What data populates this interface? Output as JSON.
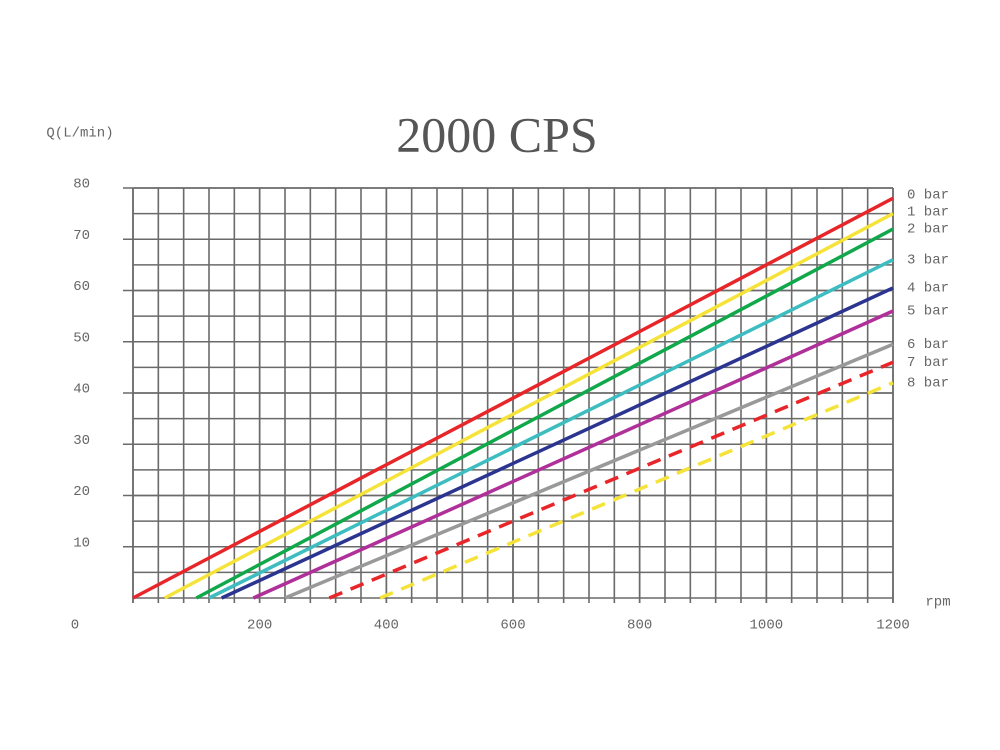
{
  "chart_data": {
    "type": "line",
    "title": "2000 CPS",
    "y_label": "Q(L/min)",
    "x_label": "rpm",
    "xlim": [
      0,
      1200
    ],
    "ylim": [
      0,
      80
    ],
    "xticks": [
      0,
      200,
      400,
      600,
      800,
      1000,
      1200
    ],
    "yticks": [
      10,
      20,
      30,
      40,
      50,
      60,
      70,
      80
    ],
    "grid": true,
    "x_grid_step": 40,
    "y_grid_step": 5,
    "series": [
      {
        "name": "0 bar",
        "color": "#e8262a",
        "dashed": false,
        "x": [
          0,
          1200
        ],
        "values": [
          0,
          78
        ]
      },
      {
        "name": "1 bar",
        "color": "#f5e33a",
        "dashed": false,
        "x": [
          50,
          1200
        ],
        "values": [
          0,
          75
        ]
      },
      {
        "name": "2 bar",
        "color": "#10a84a",
        "dashed": false,
        "x": [
          100,
          1200
        ],
        "values": [
          0,
          72
        ]
      },
      {
        "name": "3 bar",
        "color": "#3dbdc0",
        "dashed": false,
        "x": [
          120,
          1200
        ],
        "values": [
          0,
          66
        ]
      },
      {
        "name": "4 bar",
        "color": "#2b3590",
        "dashed": false,
        "x": [
          140,
          1200
        ],
        "values": [
          0,
          60.5
        ]
      },
      {
        "name": "5 bar",
        "color": "#b0309a",
        "dashed": false,
        "x": [
          190,
          1200
        ],
        "values": [
          0,
          56
        ]
      },
      {
        "name": "6 bar",
        "color": "#999999",
        "dashed": false,
        "x": [
          240,
          1200
        ],
        "values": [
          0,
          49.5
        ]
      },
      {
        "name": "7 bar",
        "color": "#e8262a",
        "dashed": true,
        "x": [
          310,
          1200
        ],
        "values": [
          0,
          46
        ]
      },
      {
        "name": "8 bar",
        "color": "#f5e33a",
        "dashed": true,
        "x": [
          390,
          1200
        ],
        "values": [
          0,
          42
        ]
      }
    ]
  }
}
